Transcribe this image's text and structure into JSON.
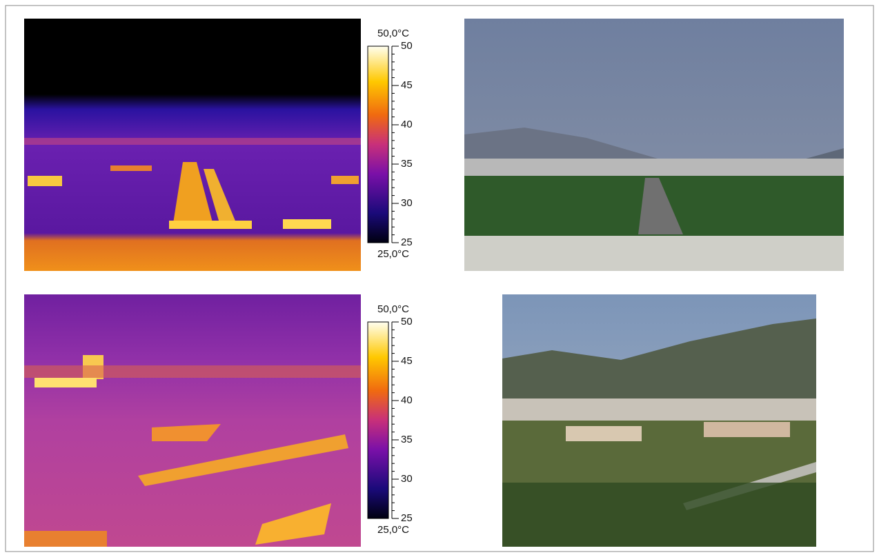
{
  "panels": [
    {
      "colorbar": {
        "max_label": "50,0°C",
        "min_label": "25,0°C",
        "range": [
          25,
          50
        ],
        "ticks": [
          50,
          45,
          40,
          35,
          30,
          25
        ]
      }
    },
    {
      "colorbar": {
        "max_label": "50,0°C",
        "min_label": "25,0°C",
        "range": [
          25,
          50
        ],
        "ticks": [
          50,
          45,
          40,
          35,
          30,
          25
        ]
      }
    }
  ]
}
